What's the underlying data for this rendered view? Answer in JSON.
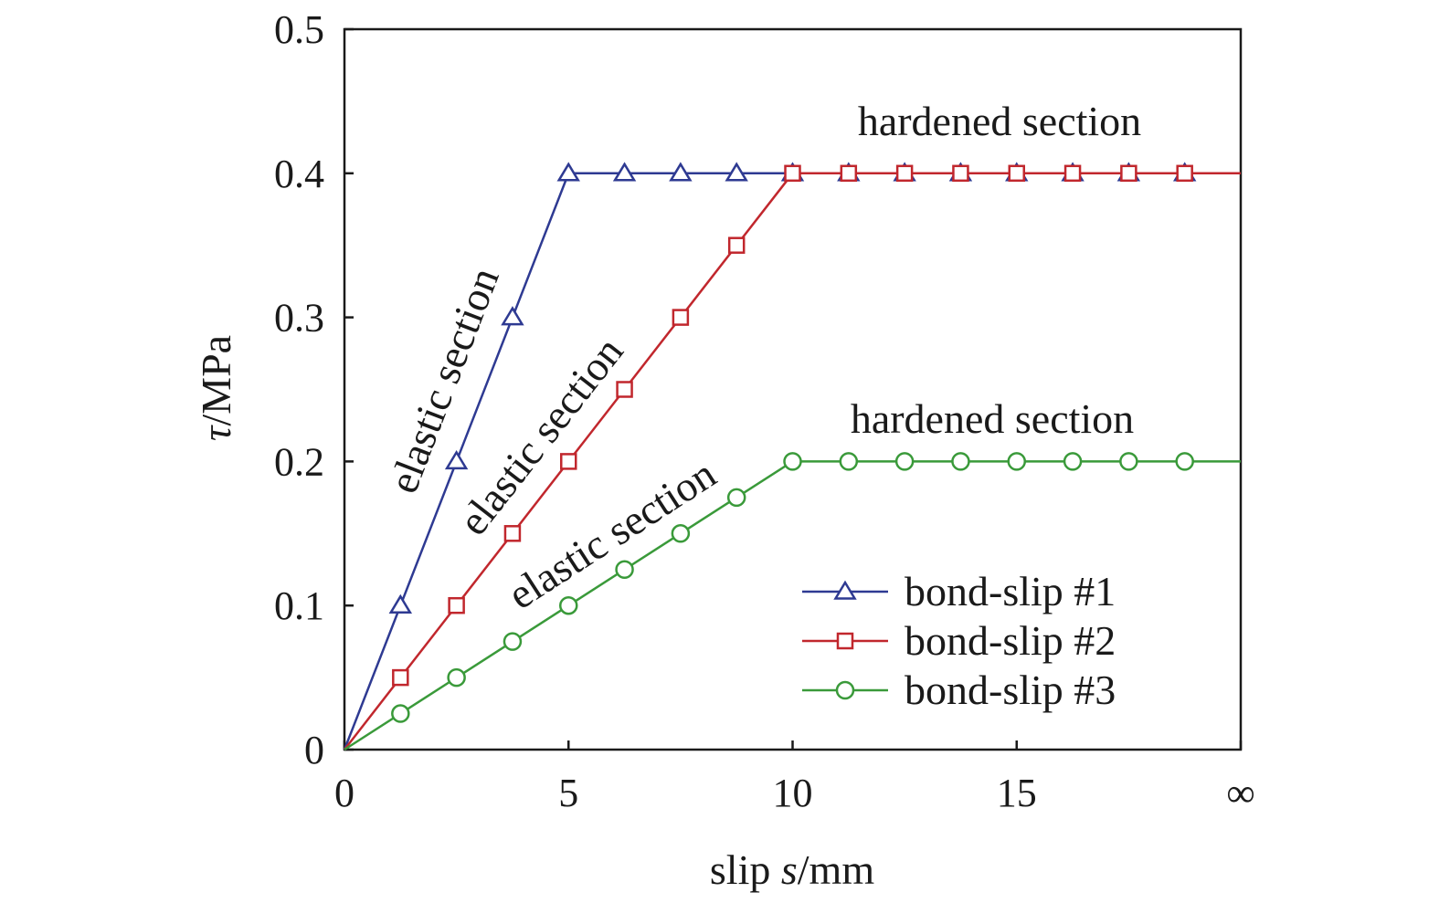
{
  "chart_data": {
    "type": "line",
    "xlabel": {
      "prefix": "slip ",
      "italic": "s",
      "suffix": "/mm"
    },
    "ylabel": {
      "italic": "τ",
      "suffix": "/MPa"
    },
    "xlim": [
      0,
      20
    ],
    "ylim": [
      0,
      0.5
    ],
    "x_tick_labels": [
      {
        "x": 0,
        "label": "0"
      },
      {
        "x": 5,
        "label": "5"
      },
      {
        "x": 10,
        "label": "10"
      },
      {
        "x": 15,
        "label": "15"
      },
      {
        "x": 20,
        "label": "∞"
      }
    ],
    "y_tick_labels": [
      {
        "y": 0,
        "label": "0"
      },
      {
        "y": 0.1,
        "label": "0.1"
      },
      {
        "y": 0.2,
        "label": "0.2"
      },
      {
        "y": 0.3,
        "label": "0.3"
      },
      {
        "y": 0.4,
        "label": "0.4"
      },
      {
        "y": 0.5,
        "label": "0.5"
      }
    ],
    "grid": false,
    "legend_position": "bottom-right",
    "series": [
      {
        "name": "bond-slip #1",
        "color": "#2e3a92",
        "marker": "triangle",
        "line": [
          [
            0,
            0
          ],
          [
            5,
            0.4
          ],
          [
            20,
            0.4
          ]
        ],
        "markers": [
          [
            1.25,
            0.1
          ],
          [
            2.5,
            0.2
          ],
          [
            3.75,
            0.3
          ],
          [
            5,
            0.4
          ],
          [
            6.25,
            0.4
          ],
          [
            7.5,
            0.4
          ],
          [
            8.75,
            0.4
          ],
          [
            10,
            0.4
          ],
          [
            11.25,
            0.4
          ],
          [
            12.5,
            0.4
          ],
          [
            13.75,
            0.4
          ],
          [
            15,
            0.4
          ],
          [
            16.25,
            0.4
          ],
          [
            17.5,
            0.4
          ],
          [
            18.75,
            0.4
          ]
        ]
      },
      {
        "name": "bond-slip #2",
        "color": "#c1272d",
        "marker": "square",
        "line": [
          [
            0,
            0
          ],
          [
            10,
            0.4
          ],
          [
            20,
            0.4
          ]
        ],
        "markers": [
          [
            1.25,
            0.05
          ],
          [
            2.5,
            0.1
          ],
          [
            3.75,
            0.15
          ],
          [
            5,
            0.2
          ],
          [
            6.25,
            0.25
          ],
          [
            7.5,
            0.3
          ],
          [
            8.75,
            0.35
          ],
          [
            10,
            0.4
          ],
          [
            11.25,
            0.4
          ],
          [
            12.5,
            0.4
          ],
          [
            13.75,
            0.4
          ],
          [
            15,
            0.4
          ],
          [
            16.25,
            0.4
          ],
          [
            17.5,
            0.4
          ],
          [
            18.75,
            0.4
          ]
        ]
      },
      {
        "name": "bond-slip #3",
        "color": "#3a9a3a",
        "marker": "circle",
        "line": [
          [
            0,
            0
          ],
          [
            10,
            0.2
          ],
          [
            20,
            0.2
          ]
        ],
        "markers": [
          [
            1.25,
            0.025
          ],
          [
            2.5,
            0.05
          ],
          [
            3.75,
            0.075
          ],
          [
            5,
            0.1
          ],
          [
            6.25,
            0.125
          ],
          [
            7.5,
            0.15
          ],
          [
            8.75,
            0.175
          ],
          [
            10,
            0.2
          ],
          [
            11.25,
            0.2
          ],
          [
            12.5,
            0.2
          ],
          [
            13.75,
            0.2
          ],
          [
            15,
            0.2
          ],
          [
            16.25,
            0.2
          ],
          [
            17.5,
            0.2
          ],
          [
            18.75,
            0.2
          ]
        ]
      }
    ],
    "annotations": [
      {
        "text": "elastic section",
        "series": "bond-slip #1"
      },
      {
        "text": "elastic section",
        "series": "bond-slip #2"
      },
      {
        "text": "elastic section",
        "series": "bond-slip #3"
      },
      {
        "text": "hardened section",
        "series": "bond-slip #1 / bond-slip #2"
      },
      {
        "text": "hardened section",
        "series": "bond-slip #3"
      }
    ]
  }
}
